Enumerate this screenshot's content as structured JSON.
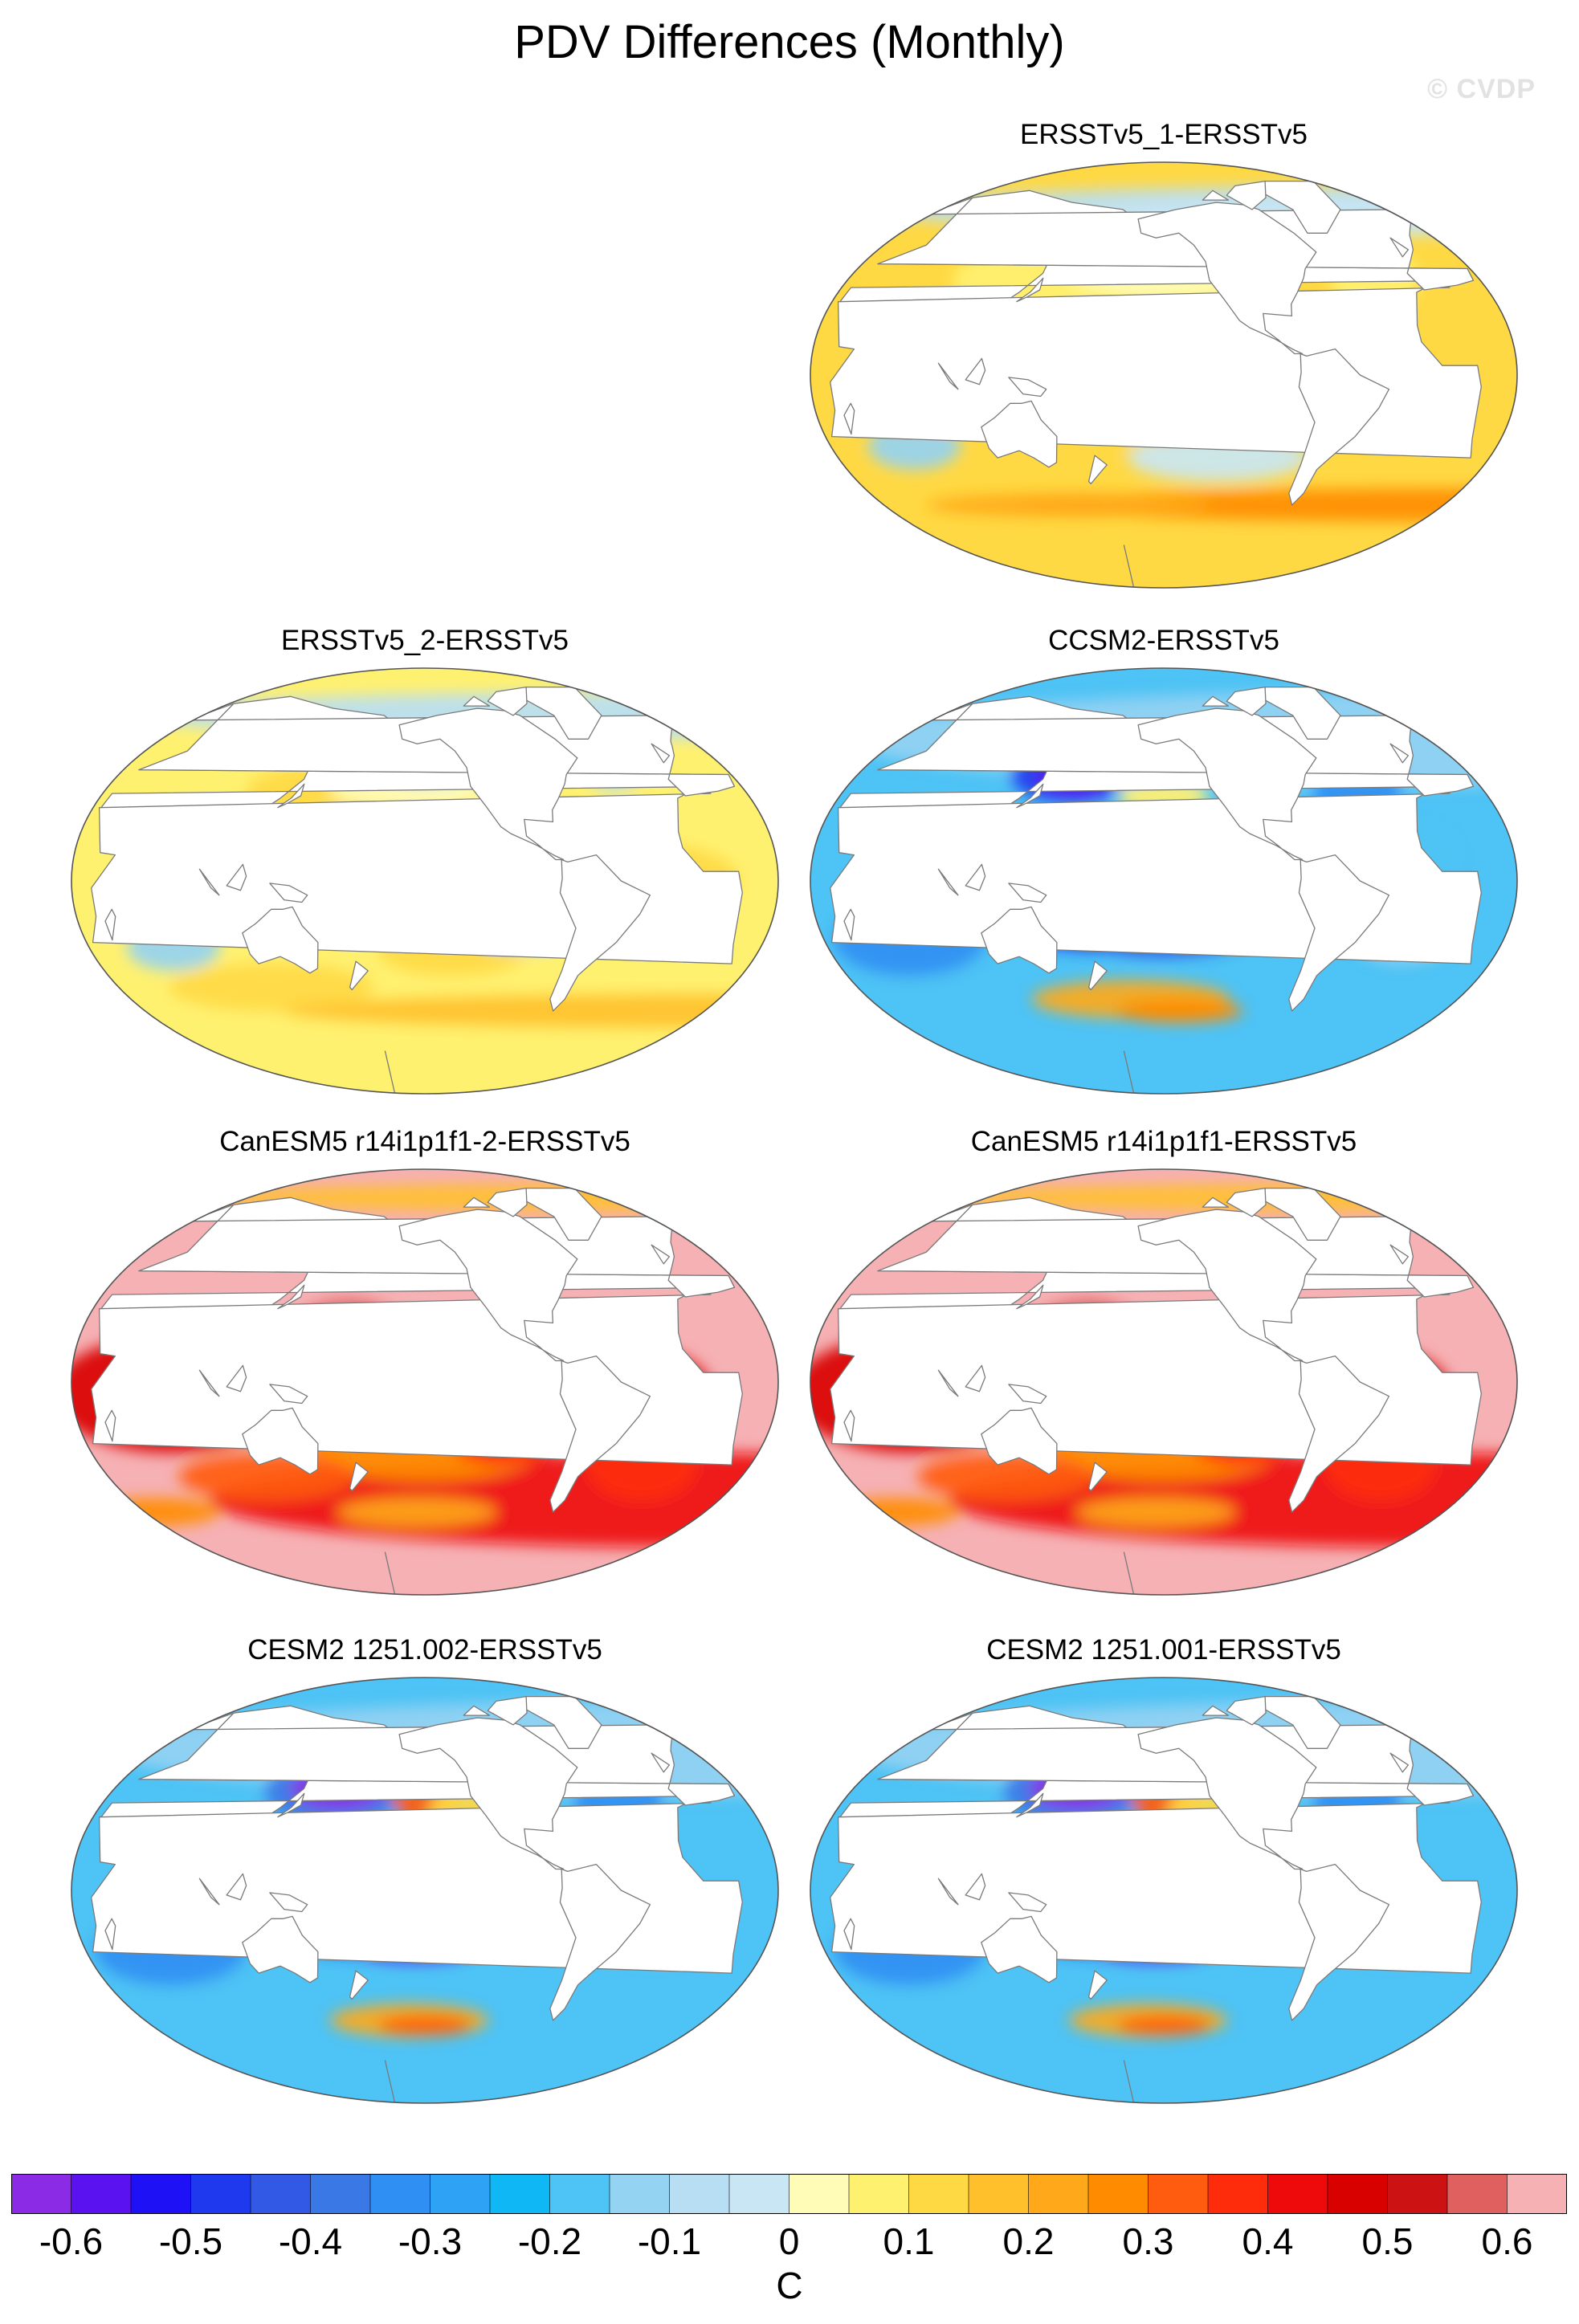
{
  "title": "PDV Differences (Monthly)",
  "watermark": "© CVDP",
  "panels": [
    {
      "title": "ERSSTv5_1-ERSSTv5",
      "pattern": "obs1"
    },
    {
      "title": "ERSSTv5_2-ERSSTv5",
      "pattern": "obs2"
    },
    {
      "title": "CCSM2-ERSSTv5",
      "pattern": "ccsm"
    },
    {
      "title": "CanESM5 r14i1p1f1-2-ERSSTv5",
      "pattern": "canesm"
    },
    {
      "title": "CanESM5 r14i1p1f1-ERSSTv5",
      "pattern": "canesm"
    },
    {
      "title": "CESM2 1251.002-ERSSTv5",
      "pattern": "cesm"
    },
    {
      "title": "CESM2 1251.001-ERSSTv5",
      "pattern": "cesm"
    }
  ],
  "colorbar": {
    "units": "C",
    "colors": [
      "#8b2be6",
      "#5a13f0",
      "#1f11f5",
      "#1f3aee",
      "#3259e6",
      "#3a78e6",
      "#2f8ff2",
      "#2ea2f5",
      "#0fb8f4",
      "#4ec3f5",
      "#95d3f2",
      "#b8def4",
      "#c9e6f4",
      "#fffcb8",
      "#fff170",
      "#ffd944",
      "#ffc02c",
      "#ffa91a",
      "#ff8c00",
      "#ff5c10",
      "#ff2c0c",
      "#ee0a0a",
      "#d90000",
      "#cc1212",
      "#e06060",
      "#f6b1b4"
    ],
    "tick_labels": [
      "-0.6",
      "-0.5",
      "-0.4",
      "-0.3",
      "-0.2",
      "-0.1",
      "0",
      "0.1",
      "0.2",
      "0.3",
      "0.4",
      "0.5",
      "0.6"
    ]
  }
}
